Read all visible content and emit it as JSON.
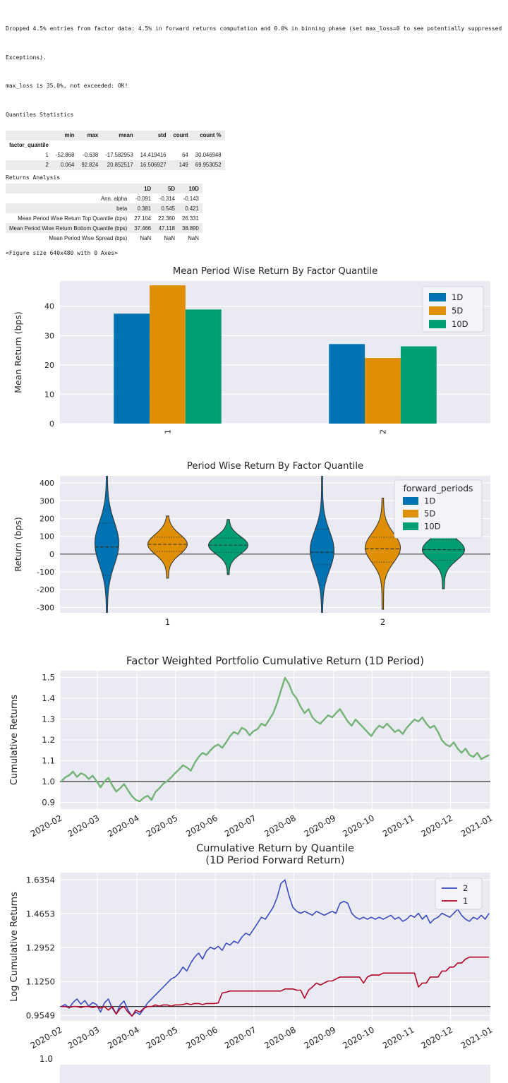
{
  "console": {
    "dropped_line1": "Dropped 4.5% entries from factor data: 4.5% in forward returns computation and 0.0% in binning phase (set max_loss=0 to see potentially suppressed",
    "dropped_line2": "Exceptions).",
    "max_loss": "max_loss is 35.0%, not exceeded: OK!",
    "quantiles_heading": "Quantiles Statistics",
    "returns_heading": "Returns Analysis",
    "figure_note": "<Figure size 640x480 with 0 Axes>"
  },
  "quantiles_table": {
    "index_name": "factor_quantile",
    "columns": [
      "min",
      "max",
      "mean",
      "std",
      "count",
      "count %"
    ],
    "rows": [
      {
        "index": "1",
        "values": [
          "-52.868",
          "-0.638",
          "-17.582953",
          "14.419416",
          "64",
          "30.046948"
        ]
      },
      {
        "index": "2",
        "values": [
          "0.064",
          "92.824",
          "20.852517",
          "16.506927",
          "149",
          "69.953052"
        ]
      }
    ]
  },
  "returns_table": {
    "columns": [
      "1D",
      "5D",
      "10D"
    ],
    "rows": [
      {
        "index": "Ann. alpha",
        "values": [
          "-0.091",
          "-0.314",
          "-0.143"
        ]
      },
      {
        "index": "beta",
        "values": [
          "0.381",
          "0.545",
          "0.421"
        ]
      },
      {
        "index": "Mean Period Wise Return Top Quantile (bps)",
        "values": [
          "27.104",
          "22.360",
          "26.331"
        ]
      },
      {
        "index": "Mean Period Wise Return Bottom Quantile (bps)",
        "values": [
          "37.466",
          "47.118",
          "38.890"
        ]
      },
      {
        "index": "Mean Period Wise Spread (bps)",
        "values": [
          "NaN",
          "NaN",
          "NaN"
        ]
      }
    ]
  },
  "palette": {
    "blue": "#0173b2",
    "orange": "#de8f05",
    "green": "#029e73",
    "line_green": "#74b277",
    "line_blue": "#3b4cc0",
    "line_red": "#b40426",
    "plot_bg": "#eaeaf2",
    "grid": "#ffffff",
    "text": "#262626"
  },
  "chart_data": [
    {
      "type": "bar",
      "title": "Mean Period Wise Return By Factor Quantile",
      "ylabel": "Mean Return (bps)",
      "categories": [
        "1",
        "2"
      ],
      "series": [
        {
          "name": "1D",
          "color": "#0173b2",
          "values": [
            37.466,
            27.104
          ]
        },
        {
          "name": "5D",
          "color": "#de8f05",
          "values": [
            47.118,
            22.36
          ]
        },
        {
          "name": "10D",
          "color": "#029e73",
          "values": [
            38.89,
            26.331
          ]
        }
      ],
      "ylim": [
        0,
        48.6
      ],
      "yticks": [
        0,
        10,
        20,
        30,
        40
      ],
      "legend": {
        "position": "upper right",
        "entries": [
          "1D",
          "5D",
          "10D"
        ]
      }
    },
    {
      "type": "violin",
      "title": "Period Wise Return By Factor Quantile",
      "ylabel": "Return (bps)",
      "categories": [
        "1",
        "2"
      ],
      "ylim": [
        -330,
        440
      ],
      "yticks": [
        -300,
        -200,
        -100,
        0,
        100,
        200,
        300,
        400
      ],
      "hline": 0,
      "legend": {
        "title": "forward_periods",
        "entries": [
          "1D",
          "5D",
          "10D"
        ],
        "position": "upper right"
      },
      "series_colors": {
        "1D": "#0173b2",
        "5D": "#de8f05",
        "10D": "#029e73"
      },
      "violins": [
        {
          "category": "1",
          "period": "1D",
          "min": -360,
          "max": 470,
          "mode": 60,
          "sigma": 170,
          "halfwidth": 17,
          "q1": -120,
          "median": 40,
          "q3": 175
        },
        {
          "category": "1",
          "period": "5D",
          "min": -135,
          "max": 215,
          "mode": 55,
          "sigma": 80,
          "halfwidth": 28,
          "q1": 15,
          "median": 55,
          "q3": 95
        },
        {
          "category": "1",
          "period": "10D",
          "min": -115,
          "max": 195,
          "mode": 50,
          "sigma": 70,
          "halfwidth": 28,
          "q1": 10,
          "median": 50,
          "q3": 90
        },
        {
          "category": "2",
          "period": "1D",
          "min": -360,
          "max": 470,
          "mode": 20,
          "sigma": 155,
          "halfwidth": 17,
          "q1": -60,
          "median": 10,
          "q3": 140
        },
        {
          "category": "2",
          "period": "5D",
          "min": -310,
          "max": 315,
          "mode": 35,
          "sigma": 115,
          "halfwidth": 25,
          "q1": -45,
          "median": 30,
          "q3": 95
        },
        {
          "category": "2",
          "period": "10D",
          "min": -195,
          "max": 235,
          "mode": 25,
          "sigma": 85,
          "halfwidth": 30,
          "q1": -35,
          "median": 25,
          "q3": 80
        }
      ]
    },
    {
      "type": "line",
      "title": "Factor Weighted Portfolio Cumulative Return (1D Period)",
      "ylabel": "Cumulative Returns",
      "ylim": [
        0.868,
        1.532
      ],
      "yticks": [
        0.9,
        1.0,
        1.1,
        1.2,
        1.3,
        1.4,
        1.5
      ],
      "ytick_labels": [
        "0.9",
        "1.0",
        "1.1",
        "1.2",
        "1.3",
        "1.4",
        "1.5"
      ],
      "hline": 1.0,
      "xdomain": [
        0,
        335
      ],
      "xticks": [
        0,
        29,
        60,
        90,
        121,
        151,
        182,
        213,
        243,
        274,
        304,
        335
      ],
      "xtick_labels": [
        "2020-02",
        "2020-03",
        "2020-04",
        "2020-05",
        "2020-06",
        "2020-07",
        "2020-08",
        "2020-09",
        "2020-10",
        "2020-11",
        "2020-12",
        "2021-01"
      ],
      "series": [
        {
          "name": "Portfolio",
          "color": "#74b277",
          "linewidth": 2.4,
          "y": [
            1.0,
            1.02,
            1.03,
            1.048,
            1.022,
            1.04,
            1.032,
            1.012,
            1.028,
            1.003,
            0.972,
            1.0,
            1.018,
            0.982,
            0.952,
            0.968,
            0.988,
            0.958,
            0.93,
            0.912,
            0.905,
            0.922,
            0.932,
            0.912,
            0.95,
            0.968,
            0.99,
            1.002,
            1.02,
            1.04,
            1.058,
            1.078,
            1.068,
            1.052,
            1.09,
            1.118,
            1.138,
            1.128,
            1.15,
            1.168,
            1.178,
            1.162,
            1.188,
            1.218,
            1.238,
            1.228,
            1.258,
            1.248,
            1.222,
            1.242,
            1.252,
            1.278,
            1.268,
            1.298,
            1.328,
            1.378,
            1.438,
            1.498,
            1.468,
            1.422,
            1.398,
            1.358,
            1.328,
            1.348,
            1.308,
            1.288,
            1.278,
            1.298,
            1.318,
            1.308,
            1.328,
            1.348,
            1.318,
            1.288,
            1.268,
            1.298,
            1.278,
            1.258,
            1.238,
            1.218,
            1.248,
            1.268,
            1.258,
            1.278,
            1.258,
            1.238,
            1.248,
            1.228,
            1.258,
            1.278,
            1.298,
            1.288,
            1.308,
            1.278,
            1.258,
            1.268,
            1.238,
            1.198,
            1.178,
            1.168,
            1.188,
            1.158,
            1.138,
            1.158,
            1.128,
            1.118,
            1.138,
            1.108,
            1.118,
            1.128
          ]
        }
      ]
    },
    {
      "type": "line",
      "title": "Cumulative Return by Quantile",
      "title2": "(1D Period Forward Return)",
      "ylabel": "Log Cumulative Returns",
      "ylim": [
        0.928,
        1.672
      ],
      "yticks": [
        0.9549,
        1.125,
        1.2952,
        1.4653,
        1.6354
      ],
      "ytick_labels": [
        "0.9549",
        "1.1250",
        "1.2952",
        "1.4653",
        "1.6354"
      ],
      "hline": 1.0,
      "xdomain": [
        0,
        335
      ],
      "xticks": [
        0,
        29,
        60,
        90,
        121,
        151,
        182,
        213,
        243,
        274,
        304,
        335
      ],
      "xtick_labels": [
        "2020-02",
        "2020-03",
        "2020-04",
        "2020-05",
        "2020-06",
        "2020-07",
        "2020-08",
        "2020-09",
        "2020-10",
        "2020-11",
        "2020-12",
        "2021-01"
      ],
      "legend": {
        "entries": [
          "2",
          "1"
        ],
        "position": "upper right"
      },
      "series": [
        {
          "name": "2",
          "color": "#3b4cc0",
          "linewidth": 1.6,
          "y": [
            1.0,
            1.01,
            0.992,
            1.02,
            1.038,
            1.012,
            1.03,
            1.002,
            1.02,
            1.01,
            0.972,
            1.018,
            1.038,
            0.992,
            0.962,
            1.008,
            1.028,
            0.982,
            0.952,
            0.972,
            0.96,
            0.988,
            1.018,
            1.038,
            1.058,
            1.078,
            1.098,
            1.118,
            1.138,
            1.148,
            1.168,
            1.198,
            1.178,
            1.218,
            1.248,
            1.268,
            1.238,
            1.278,
            1.298,
            1.288,
            1.302,
            1.282,
            1.318,
            1.308,
            1.328,
            1.318,
            1.348,
            1.368,
            1.358,
            1.388,
            1.418,
            1.448,
            1.438,
            1.468,
            1.498,
            1.548,
            1.618,
            1.635,
            1.558,
            1.498,
            1.478,
            1.468,
            1.478,
            1.468,
            1.458,
            1.478,
            1.468,
            1.458,
            1.468,
            1.478,
            1.468,
            1.518,
            1.528,
            1.518,
            1.468,
            1.448,
            1.438,
            1.448,
            1.438,
            1.448,
            1.438,
            1.448,
            1.438,
            1.448,
            1.458,
            1.438,
            1.448,
            1.428,
            1.438,
            1.458,
            1.448,
            1.468,
            1.438,
            1.458,
            1.418,
            1.438,
            1.448,
            1.468,
            1.458,
            1.448,
            1.468,
            1.488,
            1.458,
            1.438,
            1.428,
            1.448,
            1.438,
            1.458,
            1.438,
            1.468
          ]
        },
        {
          "name": "1",
          "color": "#b40426",
          "linewidth": 1.6,
          "y": [
            1.0,
            1.0,
            0.995,
            1.0,
            1.0,
            0.995,
            1.0,
            1.0,
            0.995,
            1.0,
            0.992,
            1.0,
            0.982,
            1.0,
            0.962,
            0.99,
            1.0,
            0.972,
            0.952,
            0.982,
            0.972,
            0.99,
            1.0,
            1.0,
            1.008,
            1.002,
            1.008,
            1.008,
            1.002,
            1.008,
            1.008,
            1.01,
            1.015,
            1.01,
            1.015,
            1.015,
            1.01,
            1.015,
            1.015,
            1.015,
            1.018,
            1.068,
            1.072,
            1.078,
            1.078,
            1.078,
            1.078,
            1.078,
            1.078,
            1.078,
            1.078,
            1.078,
            1.078,
            1.078,
            1.078,
            1.078,
            1.078,
            1.088,
            1.088,
            1.088,
            1.082,
            1.082,
            1.042,
            1.082,
            1.098,
            1.118,
            1.108,
            1.118,
            1.128,
            1.128,
            1.138,
            1.148,
            1.148,
            1.148,
            1.148,
            1.148,
            1.148,
            1.118,
            1.148,
            1.158,
            1.158,
            1.158,
            1.168,
            1.168,
            1.168,
            1.168,
            1.168,
            1.168,
            1.168,
            1.168,
            1.168,
            1.098,
            1.118,
            1.118,
            1.148,
            1.148,
            1.148,
            1.178,
            1.178,
            1.198,
            1.198,
            1.218,
            1.218,
            1.238,
            1.248,
            1.248,
            1.248,
            1.248,
            1.248,
            1.248
          ]
        }
      ]
    },
    {
      "type": "partial",
      "ytick_label": "1.0"
    }
  ]
}
